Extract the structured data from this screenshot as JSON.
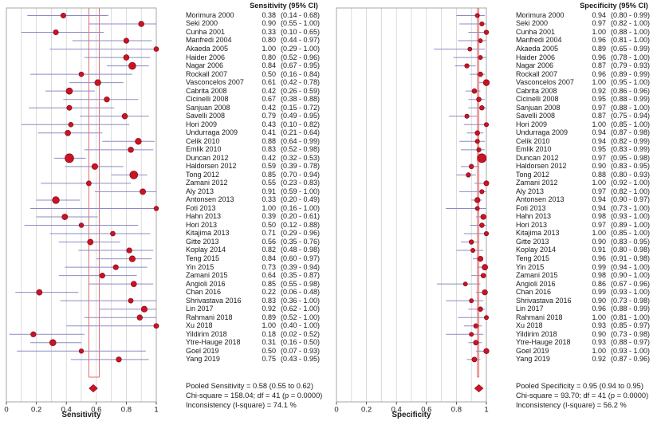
{
  "colors": {
    "point": "#c91425",
    "point_edge": "#7d000d",
    "ci_line": "#8b8bc6",
    "pooled_line": "#e05c5c",
    "diamond": "#c91425",
    "grid": "#cdcdcd",
    "frame": "#9e9e9e",
    "tick": "#444444",
    "text": "#1a1a1a"
  },
  "chart_data": [
    {
      "type": "forest",
      "header": "Sensitivity (95% CI)",
      "xlabel": "Sensitivity",
      "xlim": [
        0,
        1
      ],
      "grid": "vertical lines every 0.1",
      "x_ticks": [
        "0",
        "0.2",
        "0.4",
        "0.6",
        "0.8",
        "1"
      ],
      "pooled": {
        "value": 0.58,
        "ci": [
          0.55,
          0.62
        ]
      },
      "stats": [
        "Pooled Sensitivity = 0.58 (0.55 to 0.62)",
        "Chi-square = 158.04; df = 41 (p = 0.0000)",
        "Inconsistency (I-square) = 74.1 %"
      ],
      "studies": [
        {
          "label": "Morimura 2000",
          "value": 0.38,
          "ci": [
            0.14,
            0.68
          ]
        },
        {
          "label": "Seki 2000",
          "value": 0.9,
          "ci": [
            0.55,
            1.0
          ]
        },
        {
          "label": "Cunha 2001",
          "value": 0.33,
          "ci": [
            0.1,
            0.65
          ]
        },
        {
          "label": "Manfredi 2004",
          "value": 0.8,
          "ci": [
            0.44,
            0.97
          ]
        },
        {
          "label": "Akaeda 2005",
          "value": 1.0,
          "ci": [
            0.29,
            1.0
          ]
        },
        {
          "label": "Haider 2006",
          "value": 0.8,
          "ci": [
            0.52,
            0.96
          ]
        },
        {
          "label": "Nagar 2006",
          "value": 0.84,
          "ci": [
            0.67,
            0.95
          ]
        },
        {
          "label": "Rockall 2007",
          "value": 0.5,
          "ci": [
            0.16,
            0.84
          ]
        },
        {
          "label": "Vasconcelos 2007",
          "value": 0.61,
          "ci": [
            0.42,
            0.78
          ]
        },
        {
          "label": "Cabrita 2008",
          "value": 0.42,
          "ci": [
            0.26,
            0.59
          ]
        },
        {
          "label": "Cicinelli 2008",
          "value": 0.67,
          "ci": [
            0.38,
            0.88
          ]
        },
        {
          "label": "Sanjuan 2008",
          "value": 0.42,
          "ci": [
            0.15,
            0.72
          ]
        },
        {
          "label": "Savelli 2008",
          "value": 0.79,
          "ci": [
            0.49,
            0.95
          ]
        },
        {
          "label": "Hori 2009",
          "value": 0.43,
          "ci": [
            0.1,
            0.82
          ]
        },
        {
          "label": "Undurraga 2009",
          "value": 0.41,
          "ci": [
            0.21,
            0.64
          ]
        },
        {
          "label": "Celik 2010",
          "value": 0.88,
          "ci": [
            0.64,
            0.99
          ]
        },
        {
          "label": "Emlik 2010",
          "value": 0.83,
          "ci": [
            0.52,
            0.98
          ]
        },
        {
          "label": "Duncan 2012",
          "value": 0.42,
          "ci": [
            0.32,
            0.53
          ]
        },
        {
          "label": "Haldorsen 2012",
          "value": 0.59,
          "ci": [
            0.39,
            0.78
          ]
        },
        {
          "label": "Tong 2012",
          "value": 0.85,
          "ci": [
            0.7,
            0.94
          ]
        },
        {
          "label": "Zamani 2012",
          "value": 0.55,
          "ci": [
            0.23,
            0.83
          ]
        },
        {
          "label": "Aly 2013",
          "value": 0.91,
          "ci": [
            0.59,
            1.0
          ]
        },
        {
          "label": "Antonsen 2013",
          "value": 0.33,
          "ci": [
            0.2,
            0.49
          ]
        },
        {
          "label": "Foti 2013",
          "value": 1.0,
          "ci": [
            0.16,
            1.0
          ]
        },
        {
          "label": "Hahn 2013",
          "value": 0.39,
          "ci": [
            0.2,
            0.61
          ]
        },
        {
          "label": "Hori 2013",
          "value": 0.5,
          "ci": [
            0.12,
            0.88
          ]
        },
        {
          "label": "Kitajima 2013",
          "value": 0.71,
          "ci": [
            0.29,
            0.96
          ]
        },
        {
          "label": "Gitte 2013",
          "value": 0.56,
          "ci": [
            0.35,
            0.76
          ]
        },
        {
          "label": "Koplay 2014",
          "value": 0.82,
          "ci": [
            0.48,
            0.98
          ]
        },
        {
          "label": "Teng 2015",
          "value": 0.84,
          "ci": [
            0.6,
            0.97
          ]
        },
        {
          "label": "Yin 2015",
          "value": 0.73,
          "ci": [
            0.39,
            0.94
          ]
        },
        {
          "label": "Zamani 2015",
          "value": 0.64,
          "ci": [
            0.35,
            0.87
          ]
        },
        {
          "label": "Angioli 2016",
          "value": 0.85,
          "ci": [
            0.55,
            0.98
          ]
        },
        {
          "label": "Chan 2016",
          "value": 0.22,
          "ci": [
            0.06,
            0.48
          ]
        },
        {
          "label": "Shrivastava 2016",
          "value": 0.83,
          "ci": [
            0.36,
            1.0
          ]
        },
        {
          "label": "Lin 2017",
          "value": 0.92,
          "ci": [
            0.62,
            1.0
          ]
        },
        {
          "label": "Rahmani 2018",
          "value": 0.89,
          "ci": [
            0.52,
            1.0
          ]
        },
        {
          "label": "Xu 2018",
          "value": 1.0,
          "ci": [
            0.4,
            1.0
          ]
        },
        {
          "label": "Yildirim 2018",
          "value": 0.18,
          "ci": [
            0.02,
            0.52
          ]
        },
        {
          "label": "Ytre-Hauge 2018",
          "value": 0.31,
          "ci": [
            0.16,
            0.5
          ]
        },
        {
          "label": "Goel 2019",
          "value": 0.5,
          "ci": [
            0.07,
            0.93
          ]
        },
        {
          "label": "Yang 2019",
          "value": 0.75,
          "ci": [
            0.43,
            0.95
          ]
        }
      ]
    },
    {
      "type": "forest",
      "header": "Specificity (95% CI)",
      "xlabel": "Specificity",
      "xlim": [
        0,
        1
      ],
      "grid": "vertical lines every 0.1",
      "x_ticks": [
        "0",
        "0.2",
        "0.4",
        "0.6",
        "0.8",
        "1"
      ],
      "pooled": {
        "value": 0.95,
        "ci": [
          0.94,
          0.95
        ]
      },
      "stats": [
        "Pooled Specificity = 0.95 (0.94 to 0.95)",
        "Chi-square = 93.70; df = 41 (p = 0.0000)",
        "Inconsistency (I-square) = 56.2 %"
      ],
      "studies": [
        {
          "label": "Morimura 2000",
          "value": 0.94,
          "ci": [
            0.8,
            0.99
          ]
        },
        {
          "label": "Seki 2000",
          "value": 0.97,
          "ci": [
            0.82,
            1.0
          ]
        },
        {
          "label": "Cunha 2001",
          "value": 1.0,
          "ci": [
            0.88,
            1.0
          ]
        },
        {
          "label": "Manfredi 2004",
          "value": 0.96,
          "ci": [
            0.81,
            1.0
          ]
        },
        {
          "label": "Akaeda 2005",
          "value": 0.89,
          "ci": [
            0.65,
            0.99
          ]
        },
        {
          "label": "Haider 2006",
          "value": 0.96,
          "ci": [
            0.78,
            1.0
          ]
        },
        {
          "label": "Nagar 2006",
          "value": 0.87,
          "ci": [
            0.79,
            0.93
          ]
        },
        {
          "label": "Rockall 2007",
          "value": 0.96,
          "ci": [
            0.89,
            0.99
          ]
        },
        {
          "label": "Vasconcelos 2007",
          "value": 1.0,
          "ci": [
            0.95,
            1.0
          ]
        },
        {
          "label": "Cabrita 2008",
          "value": 0.92,
          "ci": [
            0.86,
            0.96
          ]
        },
        {
          "label": "Cicinelli 2008",
          "value": 0.95,
          "ci": [
            0.88,
            0.99
          ]
        },
        {
          "label": "Sanjuan 2008",
          "value": 0.97,
          "ci": [
            0.88,
            1.0
          ]
        },
        {
          "label": "Savelli 2008",
          "value": 0.87,
          "ci": [
            0.75,
            0.94
          ]
        },
        {
          "label": "Hori 2009",
          "value": 1.0,
          "ci": [
            0.85,
            1.0
          ]
        },
        {
          "label": "Undurraga 2009",
          "value": 0.94,
          "ci": [
            0.87,
            0.98
          ]
        },
        {
          "label": "Celik 2010",
          "value": 0.94,
          "ci": [
            0.82,
            0.99
          ]
        },
        {
          "label": "Emlik 2010",
          "value": 0.95,
          "ci": [
            0.83,
            0.99
          ]
        },
        {
          "label": "Duncan 2012",
          "value": 0.97,
          "ci": [
            0.95,
            0.98
          ]
        },
        {
          "label": "Haldorsen 2012",
          "value": 0.9,
          "ci": [
            0.83,
            0.95
          ]
        },
        {
          "label": "Tong 2012",
          "value": 0.88,
          "ci": [
            0.8,
            0.93
          ]
        },
        {
          "label": "Zamani 2012",
          "value": 1.0,
          "ci": [
            0.92,
            1.0
          ]
        },
        {
          "label": "Aly 2013",
          "value": 0.97,
          "ci": [
            0.82,
            1.0
          ]
        },
        {
          "label": "Antonsen 2013",
          "value": 0.94,
          "ci": [
            0.9,
            0.97
          ]
        },
        {
          "label": "Foti 2013",
          "value": 0.94,
          "ci": [
            0.73,
            1.0
          ]
        },
        {
          "label": "Hahn 2013",
          "value": 0.98,
          "ci": [
            0.93,
            1.0
          ]
        },
        {
          "label": "Hori 2013",
          "value": 0.97,
          "ci": [
            0.89,
            1.0
          ]
        },
        {
          "label": "Kitajima 2013",
          "value": 1.0,
          "ci": [
            0.85,
            1.0
          ]
        },
        {
          "label": "Gitte 2013",
          "value": 0.9,
          "ci": [
            0.83,
            0.95
          ]
        },
        {
          "label": "Koplay 2014",
          "value": 0.91,
          "ci": [
            0.8,
            0.98
          ]
        },
        {
          "label": "Teng 2015",
          "value": 0.96,
          "ci": [
            0.91,
            0.98
          ]
        },
        {
          "label": "Yin 2015",
          "value": 0.99,
          "ci": [
            0.94,
            1.0
          ]
        },
        {
          "label": "Zamani 2015",
          "value": 0.98,
          "ci": [
            0.9,
            1.0
          ]
        },
        {
          "label": "Angioli 2016",
          "value": 0.86,
          "ci": [
            0.67,
            0.96
          ]
        },
        {
          "label": "Chan 2016",
          "value": 0.99,
          "ci": [
            0.93,
            1.0
          ]
        },
        {
          "label": "Shrivastava 2016",
          "value": 0.9,
          "ci": [
            0.73,
            0.98
          ]
        },
        {
          "label": "Lin 2017",
          "value": 0.96,
          "ci": [
            0.88,
            0.99
          ]
        },
        {
          "label": "Rahmani 2018",
          "value": 1.0,
          "ci": [
            0.81,
            1.0
          ]
        },
        {
          "label": "Xu 2018",
          "value": 0.93,
          "ci": [
            0.85,
            0.97
          ]
        },
        {
          "label": "Yildirim 2018",
          "value": 0.9,
          "ci": [
            0.73,
            0.98
          ]
        },
        {
          "label": "Ytre-Hauge 2018",
          "value": 0.93,
          "ci": [
            0.88,
            0.97
          ]
        },
        {
          "label": "Goel 2019",
          "value": 1.0,
          "ci": [
            0.93,
            1.0
          ]
        },
        {
          "label": "Yang 2019",
          "value": 0.92,
          "ci": [
            0.87,
            0.96
          ]
        }
      ]
    }
  ]
}
